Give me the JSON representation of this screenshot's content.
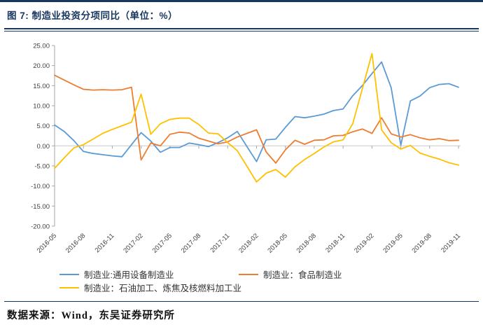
{
  "header": {
    "title": "图 7: 制造业投资分项同比（单位：%）"
  },
  "footer": {
    "source": "数据来源：Wind，东吴证券研究所"
  },
  "colors": {
    "accent_dark": "#17375E",
    "series_blue": "#5B9BD5",
    "series_orange": "#ED7D31",
    "series_yellow": "#FFC000",
    "axis_line": "#A6A6A6",
    "zero_line": "#C8C8C8",
    "tick_text": "#404040"
  },
  "chart_data": {
    "type": "line",
    "title": "制造业投资分项同比",
    "unit": "%",
    "xlabel": "",
    "ylabel": "",
    "ylim": [
      -20,
      25
    ],
    "ytick_step": 5,
    "y_tick_labels": [
      "25.00",
      "20.00",
      "15.00",
      "10.00",
      "5.00",
      "0.00",
      "-5.00",
      "-10.00",
      "-15.00",
      "-20.00"
    ],
    "grid": "zero-line-only",
    "legend_position": "bottom",
    "x_tick_every": 3,
    "x_tick_labels": [
      "2016-05",
      "2016-08",
      "2016-11",
      "2017-02",
      "2017-05",
      "2017-08",
      "2017-11",
      "2018-02",
      "2018-05",
      "2018-08",
      "2018-11",
      "2019-02",
      "2019-05",
      "2019-08",
      "2019-11"
    ],
    "x": [
      "2016-05",
      "2016-06",
      "2016-07",
      "2016-08",
      "2016-09",
      "2016-10",
      "2016-11",
      "2016-12",
      "2017-01",
      "2017-02",
      "2017-03",
      "2017-04",
      "2017-05",
      "2017-06",
      "2017-07",
      "2017-08",
      "2017-09",
      "2017-10",
      "2017-11",
      "2017-12",
      "2018-01",
      "2018-02",
      "2018-03",
      "2018-04",
      "2018-05",
      "2018-06",
      "2018-07",
      "2018-08",
      "2018-09",
      "2018-10",
      "2018-11",
      "2018-12",
      "2019-01",
      "2019-02",
      "2019-03",
      "2019-04",
      "2019-05",
      "2019-06",
      "2019-07",
      "2019-08",
      "2019-09",
      "2019-10",
      "2019-11"
    ],
    "series": [
      {
        "name": "制造业:通用设备制造业",
        "color": "#5B9BD5",
        "values": [
          5.2,
          3.6,
          1.3,
          -1.4,
          -1.9,
          -2.2,
          -2.5,
          -2.7,
          0.3,
          3.3,
          1.2,
          -1.6,
          -0.4,
          -0.4,
          0.7,
          0.3,
          -0.2,
          0.8,
          2.0,
          3.6,
          -0.2,
          -3.9,
          1.5,
          1.7,
          4.6,
          7.3,
          7.0,
          7.4,
          7.9,
          8.8,
          9.2,
          12.5,
          15.0,
          18.0,
          20.9,
          14.5,
          0.2,
          11.2,
          12.4,
          14.5,
          15.3,
          15.5,
          14.6
        ]
      },
      {
        "name": "制造业：食品制造业",
        "color": "#ED7D31",
        "values": [
          17.6,
          16.4,
          15.2,
          14.1,
          13.9,
          14.0,
          13.9,
          14.0,
          14.6,
          -3.5,
          0.7,
          0.0,
          2.9,
          3.4,
          3.2,
          1.9,
          1.2,
          0.5,
          1.0,
          2.2,
          3.1,
          4.0,
          -1.5,
          -4.3,
          -1.0,
          1.4,
          0.4,
          1.4,
          1.5,
          2.5,
          2.6,
          3.5,
          4.2,
          3.1,
          7.0,
          3.0,
          2.2,
          2.8,
          2.0,
          1.5,
          1.8,
          1.3,
          1.4
        ]
      },
      {
        "name": "制造业：石油加工、炼焦及核燃料加工业",
        "color": "#FFC000",
        "values": [
          -5.6,
          -3.0,
          -0.5,
          0.3,
          1.7,
          3.1,
          4.1,
          5.0,
          5.9,
          12.9,
          2.9,
          5.5,
          6.6,
          6.9,
          6.9,
          5.3,
          3.2,
          3.0,
          0.8,
          -1.2,
          -5.1,
          -9.0,
          -6.8,
          -5.9,
          -7.8,
          -5.2,
          -3.4,
          -1.9,
          -0.3,
          1.0,
          1.5,
          5.5,
          14.2,
          23.0,
          4.0,
          0.8,
          -0.8,
          0.1,
          -1.8,
          -2.6,
          -3.3,
          -4.2,
          -4.8
        ]
      }
    ]
  }
}
